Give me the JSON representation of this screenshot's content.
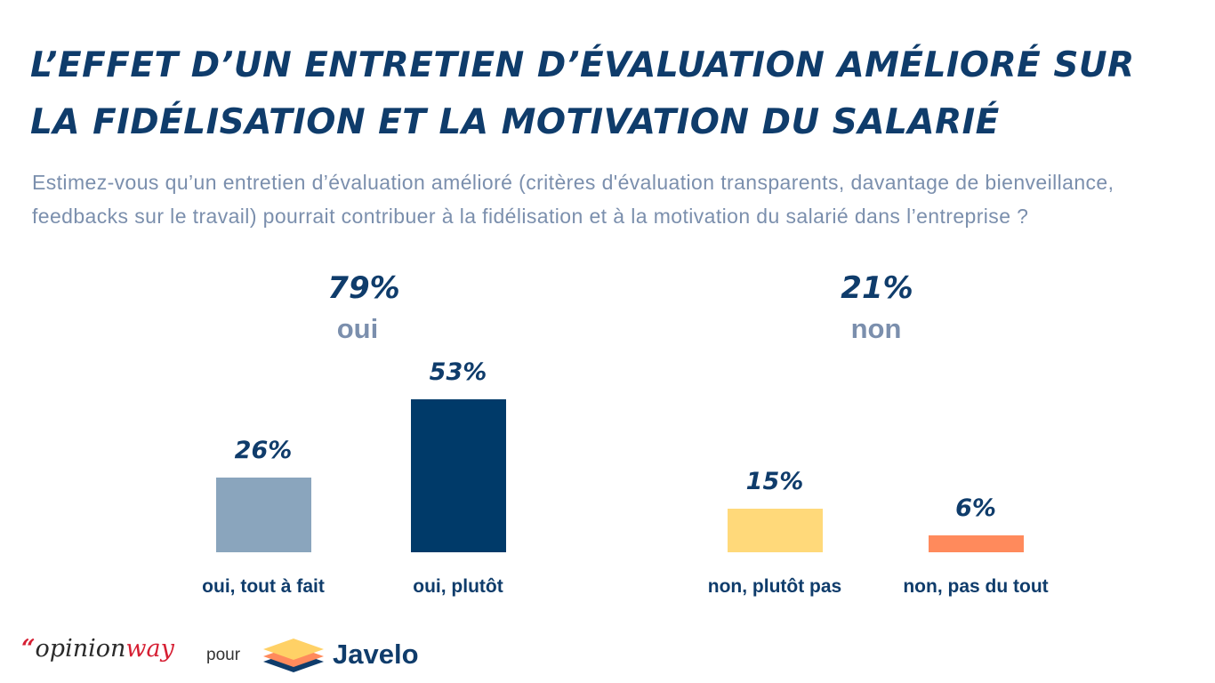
{
  "title": "L’effet d’un entretien d’évaluation amélioré sur la fidélisation et la motivation du salarié",
  "subtitle": "Estimez-vous qu’un entretien d’évaluation amélioré (critères d'évaluation transparents, davantage de bienveillance, feedbacks sur le travail) pourrait contribuer à la fidélisation et à la motivation du salarié dans l’entreprise ?",
  "groups": [
    {
      "pct": "79%",
      "label": "oui"
    },
    {
      "pct": "21%",
      "label": "non"
    }
  ],
  "footer": {
    "opinionway_quote": "“",
    "opinionway_main": "opinion",
    "opinionway_way": "way",
    "pour": "pour",
    "javelo": "Javelo"
  },
  "colors": {
    "title": "#0f3c6b",
    "subtitle": "#7b8fad",
    "oui_tout_a_fait": "#8aa5bd",
    "oui_plutot": "#003a69",
    "non_plutot_pas": "#ffd97a",
    "non_pas_du_tout": "#ff8a5c"
  },
  "chart_data": {
    "type": "bar",
    "title": "L’effet d’un entretien d’évaluation amélioré sur la fidélisation et la motivation du salarié",
    "categories": [
      "oui, tout à fait",
      "oui, plutôt",
      "non, plutôt pas",
      "non, pas du tout"
    ],
    "values": [
      26,
      53,
      15,
      6
    ],
    "value_labels": [
      "26%",
      "53%",
      "15%",
      "6%"
    ],
    "bar_colors": [
      "#8aa5bd",
      "#003a69",
      "#ffd97a",
      "#ff8a5c"
    ],
    "groups": [
      {
        "name": "oui",
        "total": 79,
        "categories": [
          "oui, tout à fait",
          "oui, plutôt"
        ]
      },
      {
        "name": "non",
        "total": 21,
        "categories": [
          "non, plutôt pas",
          "non, pas du tout"
        ]
      }
    ],
    "ylim": [
      0,
      53
    ],
    "grid": false,
    "xlabel": "",
    "ylabel": ""
  }
}
